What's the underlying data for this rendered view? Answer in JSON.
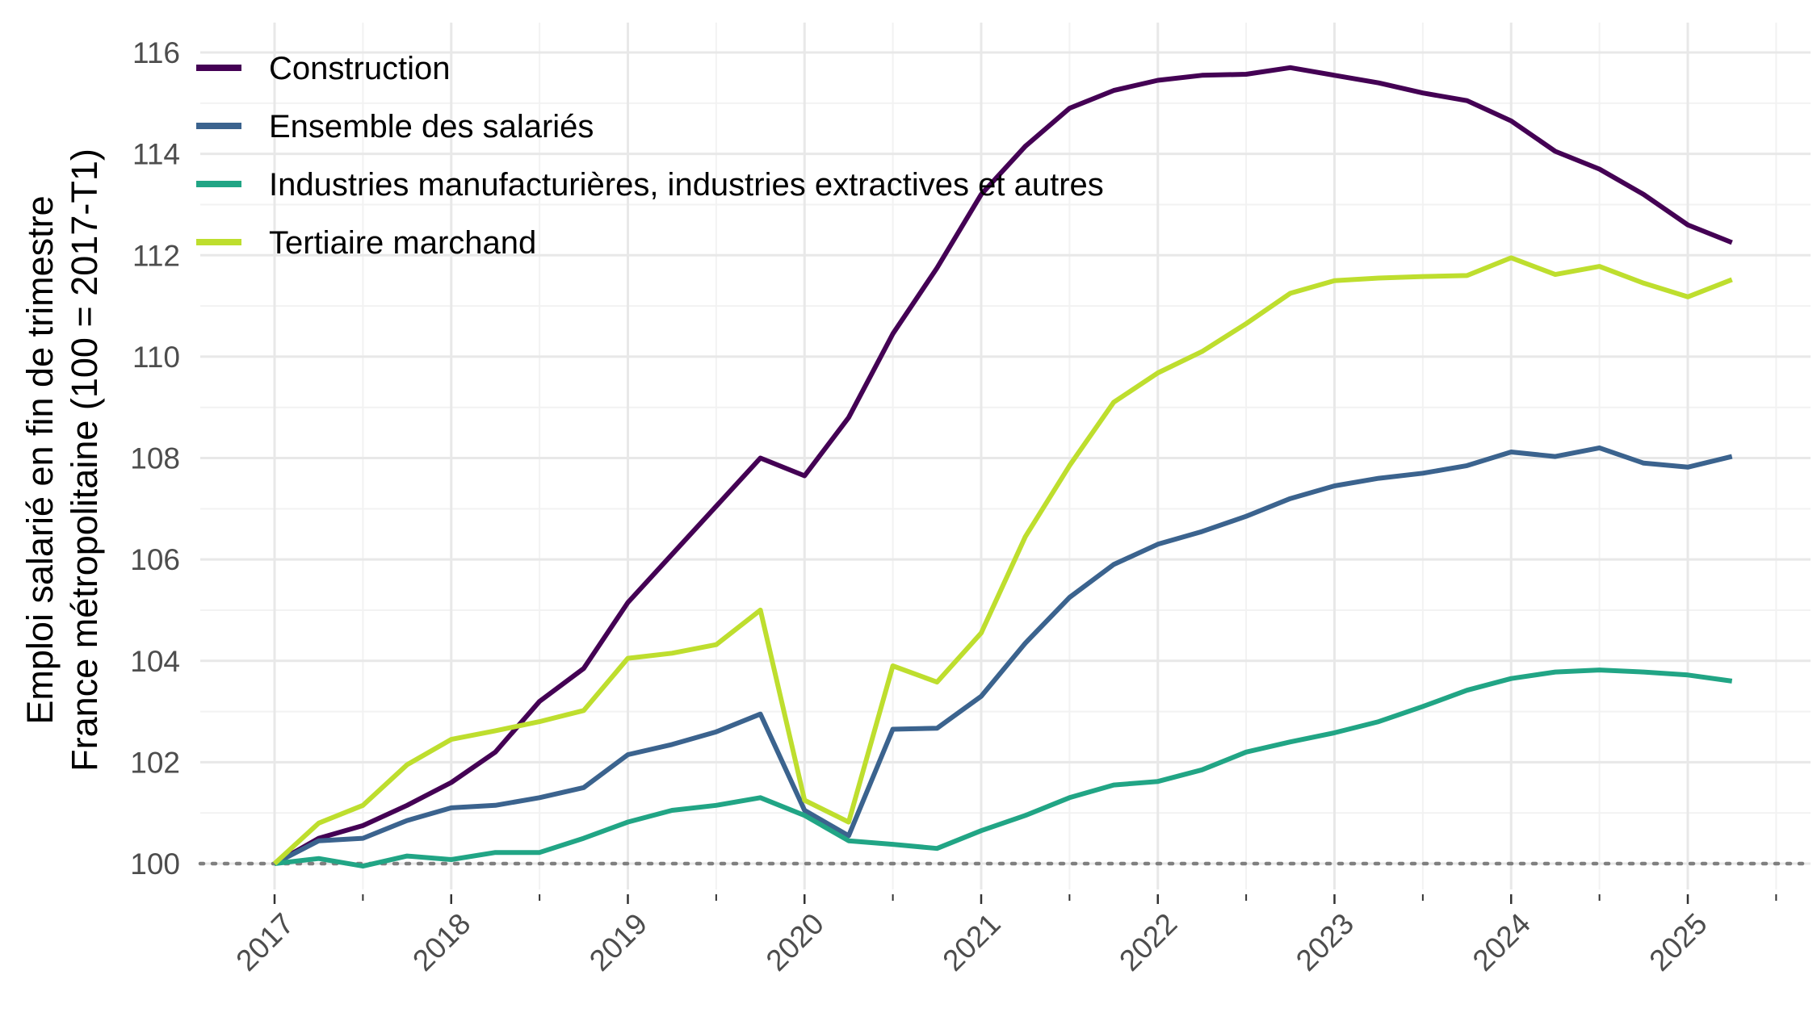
{
  "chart_data": {
    "type": "line",
    "ylabel_lines": [
      "Emploi salarié en fin de trimestre",
      "France métropolitaine (100 = 2017-T1)"
    ],
    "xlabel": "",
    "x_ticks": [
      "2017",
      "2018",
      "2019",
      "2020",
      "2021",
      "2022",
      "2023",
      "2024",
      "2025"
    ],
    "y_ticks": [
      "100",
      "102",
      "104",
      "106",
      "108",
      "110",
      "112",
      "114",
      "116"
    ],
    "xlim": [
      2016.6,
      2025.5
    ],
    "ylim": [
      99.2,
      116.3
    ],
    "x": [
      2017.0,
      2017.25,
      2017.5,
      2017.75,
      2018.0,
      2018.25,
      2018.5,
      2018.75,
      2019.0,
      2019.25,
      2019.5,
      2019.75,
      2020.0,
      2020.25,
      2020.5,
      2020.75,
      2021.0,
      2021.25,
      2021.5,
      2021.75,
      2022.0,
      2022.25,
      2022.5,
      2022.75,
      2023.0,
      2023.25,
      2023.5,
      2023.75,
      2024.0,
      2024.25,
      2024.5,
      2024.75,
      2025.0,
      2025.25
    ],
    "reference_line": {
      "y": 100,
      "style": "dotted"
    },
    "grid": true,
    "legend_position": "top-left",
    "series": [
      {
        "name": "Construction",
        "color": "#440154",
        "values": [
          100.0,
          100.5,
          100.75,
          101.15,
          101.6,
          102.2,
          103.2,
          103.85,
          105.15,
          106.1,
          107.05,
          108.0,
          107.65,
          108.8,
          110.45,
          111.75,
          113.2,
          114.15,
          114.9,
          115.25,
          115.45,
          115.55,
          115.57,
          115.7,
          115.55,
          115.4,
          115.2,
          115.05,
          114.65,
          114.05,
          113.7,
          113.2,
          112.6,
          112.25
        ]
      },
      {
        "name": "Ensemble des salariés",
        "color": "#3B638E",
        "values": [
          100.0,
          100.45,
          100.5,
          100.85,
          101.1,
          101.15,
          101.3,
          101.5,
          102.15,
          102.35,
          102.6,
          102.95,
          101.05,
          100.55,
          102.65,
          102.67,
          103.3,
          104.35,
          105.25,
          105.9,
          106.3,
          106.55,
          106.85,
          107.2,
          107.45,
          107.6,
          107.7,
          107.85,
          108.12,
          108.03,
          108.2,
          107.9,
          107.82,
          108.03
        ]
      },
      {
        "name": "Industries manufacturières, industries extractives et autres",
        "color": "#21A585",
        "values": [
          100.0,
          100.1,
          99.95,
          100.15,
          100.08,
          100.22,
          100.22,
          100.5,
          100.82,
          101.05,
          101.15,
          101.3,
          100.95,
          100.45,
          100.38,
          100.3,
          100.65,
          100.95,
          101.3,
          101.55,
          101.62,
          101.85,
          102.2,
          102.4,
          102.58,
          102.8,
          103.1,
          103.42,
          103.65,
          103.78,
          103.82,
          103.78,
          103.72,
          103.6
        ]
      },
      {
        "name": "Tertiaire marchand",
        "color": "#BEDE2E",
        "values": [
          100.0,
          100.8,
          101.15,
          101.95,
          102.45,
          102.62,
          102.8,
          103.02,
          104.05,
          104.15,
          104.32,
          105.0,
          101.25,
          100.82,
          103.9,
          103.58,
          104.55,
          106.45,
          107.85,
          109.1,
          109.68,
          110.1,
          110.65,
          111.25,
          111.5,
          111.55,
          111.58,
          111.6,
          111.95,
          111.62,
          111.78,
          111.45,
          111.18,
          111.52
        ]
      }
    ]
  }
}
